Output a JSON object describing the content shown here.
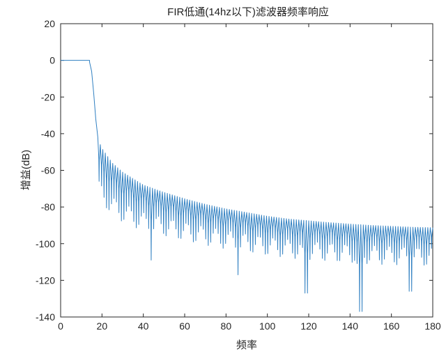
{
  "chart_data": {
    "type": "line",
    "title": "FIR低通(14hz以下)滤波器频率响应",
    "xlabel": "频率",
    "ylabel": "增益(dB)",
    "xlim": [
      0,
      180
    ],
    "ylim": [
      -140,
      20
    ],
    "xticks": [
      0,
      20,
      40,
      60,
      80,
      100,
      120,
      140,
      160,
      180
    ],
    "yticks": [
      20,
      0,
      -20,
      -40,
      -60,
      -80,
      -100,
      -120,
      -140
    ],
    "grid": false,
    "legend": "none",
    "series": [
      {
        "color": "#2f7fc1",
        "passband": {
          "x": [
            0,
            14
          ],
          "gain_db": 0
        },
        "transition": {
          "x": [
            14,
            15,
            16,
            17,
            18
          ],
          "y": [
            -1,
            -6,
            -18,
            -32,
            -42
          ]
        },
        "stopband_envelope": {
          "x": [
            18,
            20,
            25,
            30,
            40,
            50,
            60,
            70,
            80,
            90,
            100,
            110,
            120,
            130,
            140,
            150,
            160,
            170,
            180
          ],
          "y": [
            -43,
            -48,
            -56,
            -61,
            -68,
            -72,
            -75.5,
            -78.5,
            -81,
            -83,
            -85,
            -86.5,
            -87.5,
            -88.5,
            -89.3,
            -90,
            -90.5,
            -91,
            -91.3
          ]
        },
        "ripple_period": 1.2,
        "notable_minima": [
          {
            "x": 44,
            "y": -109
          },
          {
            "x": 86,
            "y": -117
          },
          {
            "x": 119,
            "y": -127
          },
          {
            "x": 145,
            "y": -137
          },
          {
            "x": 169,
            "y": -126
          }
        ]
      }
    ]
  }
}
